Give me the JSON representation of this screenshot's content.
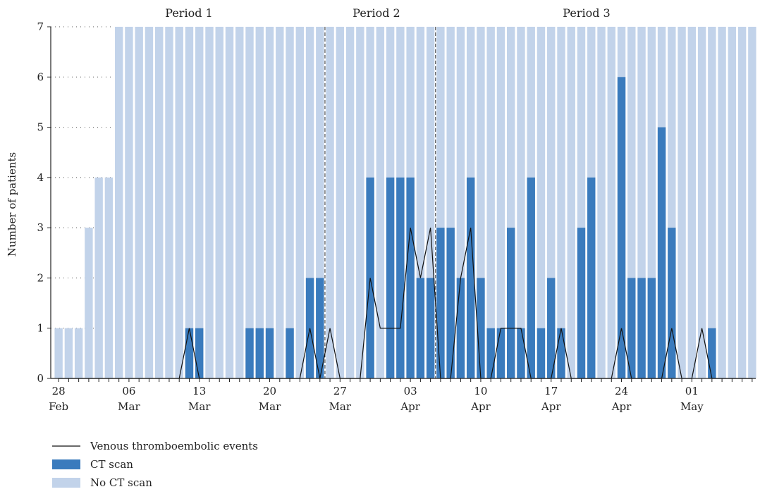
{
  "chart_data": {
    "type": "bar",
    "ylabel": "Number of patients",
    "ylim": [
      0,
      7
    ],
    "y_ticks": [
      0,
      1,
      2,
      3,
      4,
      5,
      6,
      7
    ],
    "grid": "dotted horizontal lines on left portion",
    "start_date": "2020-02-28",
    "dates": [
      "28 Feb",
      "29 Feb",
      "01 Mar",
      "02 Mar",
      "03 Mar",
      "04 Mar",
      "05 Mar",
      "06 Mar",
      "07 Mar",
      "08 Mar",
      "09 Mar",
      "10 Mar",
      "11 Mar",
      "12 Mar",
      "13 Mar",
      "14 Mar",
      "15 Mar",
      "16 Mar",
      "17 Mar",
      "18 Mar",
      "19 Mar",
      "20 Mar",
      "21 Mar",
      "22 Mar",
      "23 Mar",
      "24 Mar",
      "25 Mar",
      "26 Mar",
      "27 Mar",
      "28 Mar",
      "29 Mar",
      "30 Mar",
      "31 Mar",
      "01 Apr",
      "02 Apr",
      "03 Apr",
      "04 Apr",
      "05 Apr",
      "06 Apr",
      "07 Apr",
      "08 Apr",
      "09 Apr",
      "10 Apr",
      "11 Apr",
      "12 Apr",
      "13 Apr",
      "14 Apr",
      "15 Apr",
      "16 Apr",
      "17 Apr",
      "18 Apr",
      "19 Apr",
      "20 Apr",
      "21 Apr",
      "22 Apr",
      "23 Apr",
      "24 Apr",
      "25 Apr",
      "26 Apr",
      "27 Apr",
      "28 Apr",
      "29 Apr",
      "30 Apr",
      "01 May",
      "02 May",
      "03 May",
      "04 May",
      "05 May",
      "06 May",
      "07 May"
    ],
    "x_tick_labels": [
      {
        "index": 0,
        "day": "28",
        "month": "Feb"
      },
      {
        "index": 7,
        "day": "06",
        "month": "Mar"
      },
      {
        "index": 14,
        "day": "13",
        "month": "Mar"
      },
      {
        "index": 21,
        "day": "20",
        "month": "Mar"
      },
      {
        "index": 28,
        "day": "27",
        "month": "Mar"
      },
      {
        "index": 35,
        "day": "03",
        "month": "Apr"
      },
      {
        "index": 42,
        "day": "10",
        "month": "Apr"
      },
      {
        "index": 49,
        "day": "17",
        "month": "Apr"
      },
      {
        "index": 56,
        "day": "24",
        "month": "Apr"
      },
      {
        "index": 63,
        "day": "01",
        "month": "May"
      }
    ],
    "periods": [
      {
        "label": "Period 1",
        "start_index": 0,
        "end_index": 26
      },
      {
        "label": "Period 2",
        "start_index": 27,
        "end_index": 37
      },
      {
        "label": "Period 3",
        "start_index": 38,
        "end_index": 69
      }
    ],
    "period_dividers": [
      26.5,
      37.5
    ],
    "series": [
      {
        "name": "No CT scan",
        "kind": "bar",
        "color": "#c2d3ea",
        "values": [
          1,
          1,
          1,
          3,
          4,
          4,
          7,
          7,
          7,
          7,
          7,
          7,
          7,
          7,
          7,
          7,
          7,
          7,
          7,
          7,
          7,
          7,
          7,
          7,
          7,
          7,
          7,
          7,
          7,
          7,
          7,
          7,
          7,
          7,
          7,
          7,
          7,
          7,
          7,
          7,
          7,
          7,
          7,
          7,
          7,
          7,
          7,
          7,
          7,
          7,
          7,
          7,
          7,
          7,
          7,
          7,
          7,
          7,
          7,
          7,
          7,
          7,
          7,
          7,
          7,
          7,
          7,
          7,
          7,
          7
        ]
      },
      {
        "name": "CT scan",
        "kind": "bar",
        "color": "#3a7bbd",
        "values": [
          0,
          0,
          0,
          0,
          0,
          0,
          0,
          0,
          0,
          0,
          0,
          0,
          0,
          1,
          1,
          0,
          0,
          0,
          0,
          1,
          1,
          1,
          0,
          1,
          0,
          2,
          2,
          0,
          0,
          0,
          0,
          4,
          0,
          4,
          4,
          4,
          2,
          2,
          3,
          3,
          2,
          4,
          2,
          1,
          1,
          3,
          1,
          4,
          1,
          2,
          1,
          0,
          3,
          4,
          0,
          0,
          6,
          2,
          2,
          2,
          5,
          3,
          0,
          0,
          0,
          1,
          0,
          0,
          0,
          0
        ]
      },
      {
        "name": "Venous thromboembolic events",
        "kind": "line",
        "color": "#111111",
        "values": [
          0,
          0,
          0,
          0,
          0,
          0,
          0,
          0,
          0,
          0,
          0,
          0,
          0,
          1,
          0,
          0,
          0,
          0,
          0,
          0,
          0,
          0,
          0,
          0,
          0,
          1,
          0,
          1,
          0,
          0,
          0,
          2,
          1,
          1,
          1,
          3,
          2,
          3,
          0,
          0,
          2,
          3,
          0,
          0,
          1,
          1,
          1,
          0,
          0,
          0,
          1,
          0,
          0,
          0,
          0,
          0,
          1,
          0,
          0,
          0,
          0,
          1,
          0,
          0,
          1,
          0,
          0,
          0,
          0,
          0
        ]
      }
    ],
    "legend": {
      "placement": "bottom-left",
      "entries": [
        {
          "label": "Venous thromboembolic events",
          "kind": "line",
          "color": "#111111"
        },
        {
          "label": "CT scan",
          "kind": "box",
          "color": "#3a7bbd"
        },
        {
          "label": "No CT scan",
          "kind": "box",
          "color": "#c2d3ea"
        }
      ]
    }
  }
}
